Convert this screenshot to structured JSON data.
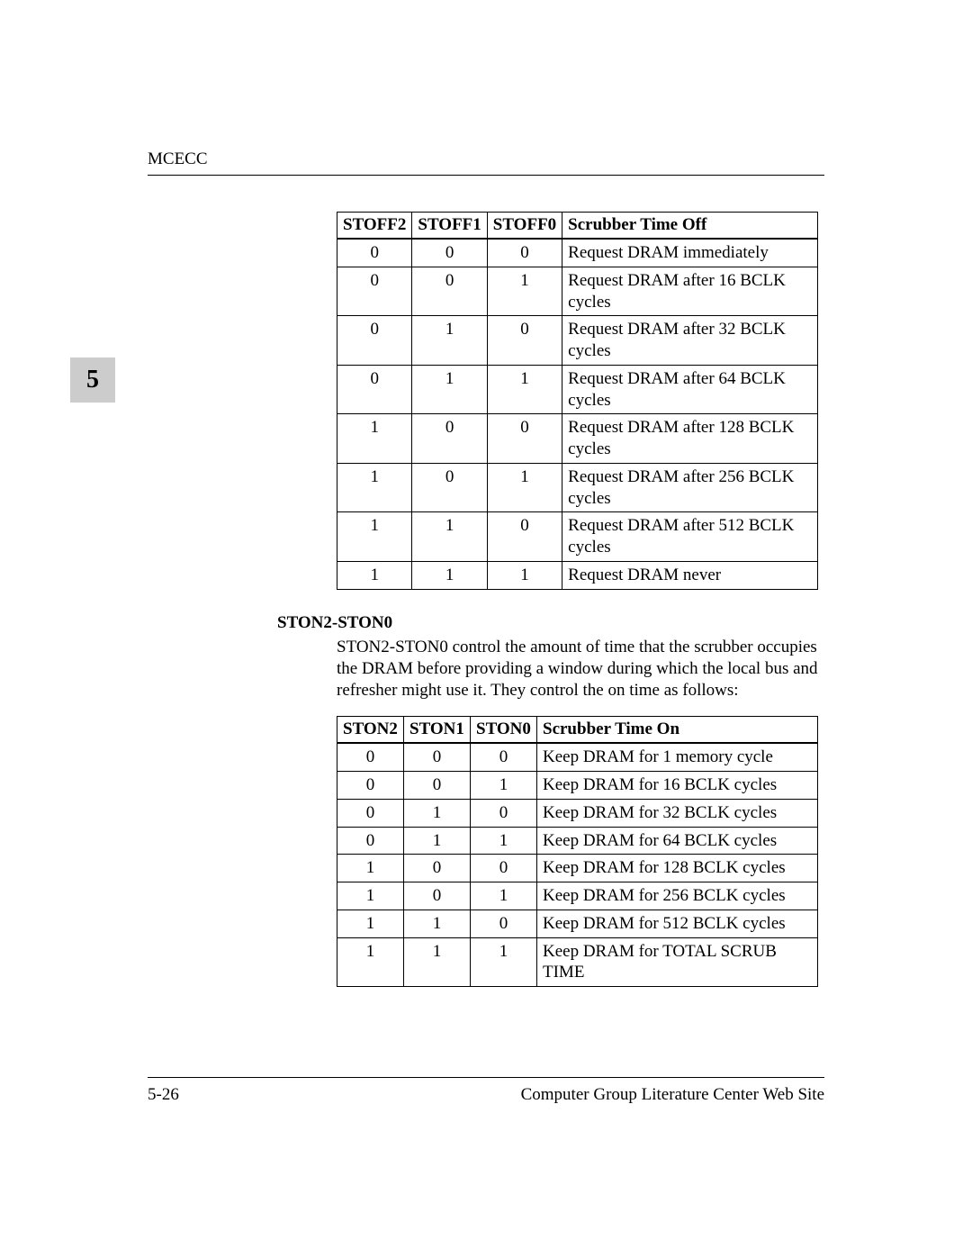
{
  "header": {
    "running_title": "MCECC"
  },
  "chapter_tab": "5",
  "table1": {
    "columns": [
      "STOFF2",
      "STOFF1",
      "STOFF0",
      "Scrubber Time Off"
    ],
    "rows": [
      [
        "0",
        "0",
        "0",
        "Request DRAM immediately"
      ],
      [
        "0",
        "0",
        "1",
        "Request DRAM after 16 BCLK cycles"
      ],
      [
        "0",
        "1",
        "0",
        "Request DRAM after 32 BCLK cycles"
      ],
      [
        "0",
        "1",
        "1",
        "Request DRAM after 64 BCLK cycles"
      ],
      [
        "1",
        "0",
        "0",
        "Request DRAM after 128 BCLK cycles"
      ],
      [
        "1",
        "0",
        "1",
        "Request DRAM after 256 BCLK cycles"
      ],
      [
        "1",
        "1",
        "0",
        "Request DRAM after 512 BCLK cycles"
      ],
      [
        "1",
        "1",
        "1",
        "Request DRAM never"
      ]
    ]
  },
  "section": {
    "title": "STON2-STON0",
    "body": "STON2-STON0 control the amount of time that the scrubber occupies the DRAM before providing a window during which the local bus and refresher might use it. They control the on time as follows:"
  },
  "table2": {
    "columns": [
      "STON2",
      "STON1",
      "STON0",
      "Scrubber Time On"
    ],
    "rows": [
      [
        "0",
        "0",
        "0",
        "Keep DRAM for 1 memory cycle"
      ],
      [
        "0",
        "0",
        "1",
        "Keep DRAM for 16 BCLK cycles"
      ],
      [
        "0",
        "1",
        "0",
        "Keep DRAM for 32 BCLK cycles"
      ],
      [
        "0",
        "1",
        "1",
        "Keep DRAM for 64 BCLK cycles"
      ],
      [
        "1",
        "0",
        "0",
        "Keep DRAM for 128 BCLK cycles"
      ],
      [
        "1",
        "0",
        "1",
        "Keep DRAM for 256 BCLK cycles"
      ],
      [
        "1",
        "1",
        "0",
        "Keep DRAM for 512 BCLK cycles"
      ],
      [
        "1",
        "1",
        "1",
        "Keep DRAM for TOTAL SCRUB TIME"
      ]
    ]
  },
  "footer": {
    "page_number": "5-26",
    "right_text": "Computer Group Literature Center Web Site"
  }
}
